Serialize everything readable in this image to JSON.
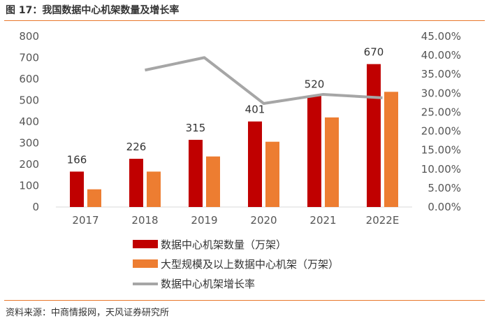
{
  "figure": {
    "title": "图 17：我国数据中心机架数量及增长率",
    "source": "资料来源：中商情报网，天风证券研究所"
  },
  "colors": {
    "series1": "#C00000",
    "series2": "#ED7D31",
    "series3": "#A6A6A6",
    "rule": "#E8782B"
  },
  "chart_data": {
    "type": "bar",
    "categories": [
      "2017",
      "2018",
      "2019",
      "2020",
      "2021",
      "2022E"
    ],
    "series": [
      {
        "name": "数据中心机架数量（万架）",
        "kind": "bar",
        "axis": "left",
        "values": [
          166,
          226,
          315,
          401,
          520,
          670
        ],
        "labels": [
          "166",
          "226",
          "315",
          "401",
          "520",
          "670"
        ]
      },
      {
        "name": "大型规模及以上数据中心机架（万架）",
        "kind": "bar",
        "axis": "left",
        "values": [
          83,
          166,
          237,
          306,
          420,
          540
        ]
      },
      {
        "name": "数据中心机架增长率",
        "kind": "line",
        "axis": "right",
        "values": [
          null,
          0.361,
          0.394,
          0.273,
          0.297,
          0.288
        ]
      }
    ],
    "left_axis": {
      "min": 0,
      "max": 800,
      "ticks": [
        "0",
        "100",
        "200",
        "300",
        "400",
        "500",
        "600",
        "700",
        "800"
      ]
    },
    "right_axis": {
      "min": 0,
      "max": 0.45,
      "ticks": [
        "0.00%",
        "5.00%",
        "10.00%",
        "15.00%",
        "20.00%",
        "25.00%",
        "30.00%",
        "35.00%",
        "40.00%",
        "45.00%"
      ]
    },
    "legend_position": "bottom-center",
    "grid": false
  }
}
